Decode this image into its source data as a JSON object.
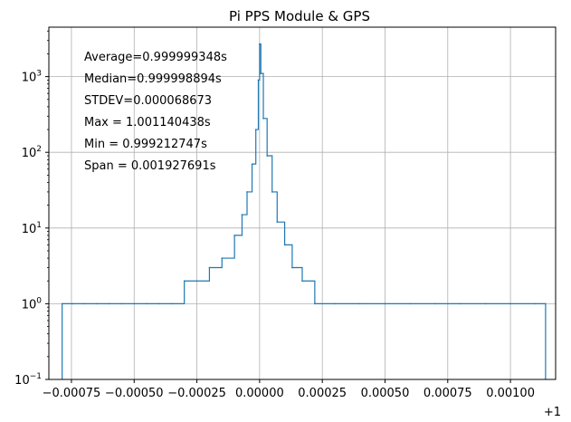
{
  "chart_data": {
    "type": "histogram",
    "title": "Pi PPS Module & GPS",
    "xlabel": "",
    "ylabel": "",
    "x_offset_label": "+1",
    "y_scale": "log",
    "ylim": [
      0.1,
      4500
    ],
    "xlim": [
      -0.00084,
      0.00118
    ],
    "grid": true,
    "series_color": "#1f77b4",
    "x_ticks": [
      {
        "value": -0.00075,
        "label": "−0.00075"
      },
      {
        "value": -0.0005,
        "label": "−0.00050"
      },
      {
        "value": -0.00025,
        "label": "−0.00025"
      },
      {
        "value": 0.0,
        "label": "0.00000"
      },
      {
        "value": 0.00025,
        "label": "0.00025"
      },
      {
        "value": 0.0005,
        "label": "0.00050"
      },
      {
        "value": 0.00075,
        "label": "0.00075"
      },
      {
        "value": 0.001,
        "label": "0.00100"
      }
    ],
    "y_ticks": [
      {
        "value": 0.1,
        "base": "10",
        "exp": "−1"
      },
      {
        "value": 1,
        "base": "10",
        "exp": "0"
      },
      {
        "value": 10,
        "base": "10",
        "exp": "1"
      },
      {
        "value": 100,
        "base": "10",
        "exp": "2"
      },
      {
        "value": 1000,
        "base": "10",
        "exp": "3"
      }
    ],
    "annotations": [
      "Average=0.999999348s",
      "Median=0.999998894s",
      "STDEV=0.000068673",
      "Max = 1.001140438s",
      "Min = 0.999212747s",
      "Span = 0.001927691s"
    ],
    "bins": {
      "x_start": -0.000787253,
      "x_end": 0.001140438,
      "count": 400
    },
    "values": [
      {
        "x": -0.000787,
        "y": 1
      },
      {
        "x": -0.000745,
        "y": 1
      },
      {
        "x": -0.0007,
        "y": 1
      },
      {
        "x": -0.00065,
        "y": 1
      },
      {
        "x": -0.0006,
        "y": 1
      },
      {
        "x": -0.00055,
        "y": 1
      },
      {
        "x": -0.0005,
        "y": 1
      },
      {
        "x": -0.00045,
        "y": 1
      },
      {
        "x": -0.0004,
        "y": 1
      },
      {
        "x": -0.00035,
        "y": 1
      },
      {
        "x": -0.0003,
        "y": 2
      },
      {
        "x": -0.00025,
        "y": 2
      },
      {
        "x": -0.0002,
        "y": 3
      },
      {
        "x": -0.00015,
        "y": 4
      },
      {
        "x": -0.0001,
        "y": 8
      },
      {
        "x": -7e-05,
        "y": 15
      },
      {
        "x": -5e-05,
        "y": 30
      },
      {
        "x": -3e-05,
        "y": 70
      },
      {
        "x": -1.5e-05,
        "y": 200
      },
      {
        "x": -5e-06,
        "y": 900
      },
      {
        "x": 0.0,
        "y": 2700
      },
      {
        "x": 5e-06,
        "y": 1100
      },
      {
        "x": 1.5e-05,
        "y": 280
      },
      {
        "x": 3e-05,
        "y": 90
      },
      {
        "x": 5e-05,
        "y": 30
      },
      {
        "x": 7e-05,
        "y": 12
      },
      {
        "x": 0.0001,
        "y": 6
      },
      {
        "x": 0.00013,
        "y": 3
      },
      {
        "x": 0.00017,
        "y": 2
      },
      {
        "x": 0.00022,
        "y": 1
      },
      {
        "x": 0.0003,
        "y": 1
      },
      {
        "x": 0.0004,
        "y": 1
      },
      {
        "x": 0.0005,
        "y": 1
      },
      {
        "x": 0.0006,
        "y": 1
      },
      {
        "x": 0.0007,
        "y": 1
      },
      {
        "x": 0.0008,
        "y": 1
      },
      {
        "x": 0.0009,
        "y": 1
      },
      {
        "x": 0.001,
        "y": 1
      },
      {
        "x": 0.0011,
        "y": 1
      },
      {
        "x": 0.00114,
        "y": 1
      }
    ]
  }
}
